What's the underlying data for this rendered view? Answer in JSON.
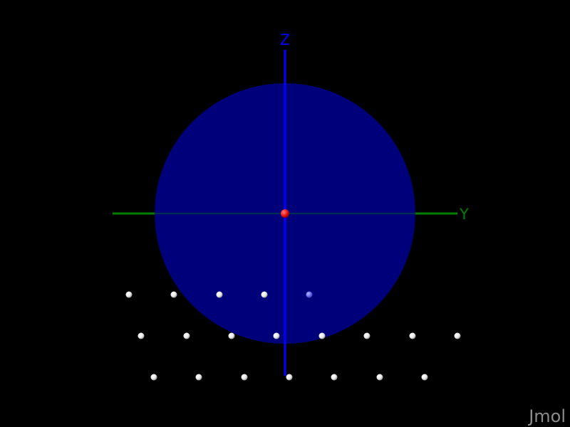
{
  "app": {
    "watermark": "Jmol"
  },
  "axes": {
    "z": {
      "label": "Z",
      "color": "#0000ff"
    },
    "y": {
      "label": "Y",
      "color": "#008000"
    }
  },
  "colors": {
    "background": "#000000",
    "sphere": "#000080",
    "center_atom": "#ff1a1a",
    "atom": "#ffffff",
    "occluded_atom": "#7070ff"
  },
  "atoms": {
    "center_count": 1,
    "row_counts": [
      5,
      8,
      7
    ],
    "inside_sphere_count": 1
  }
}
